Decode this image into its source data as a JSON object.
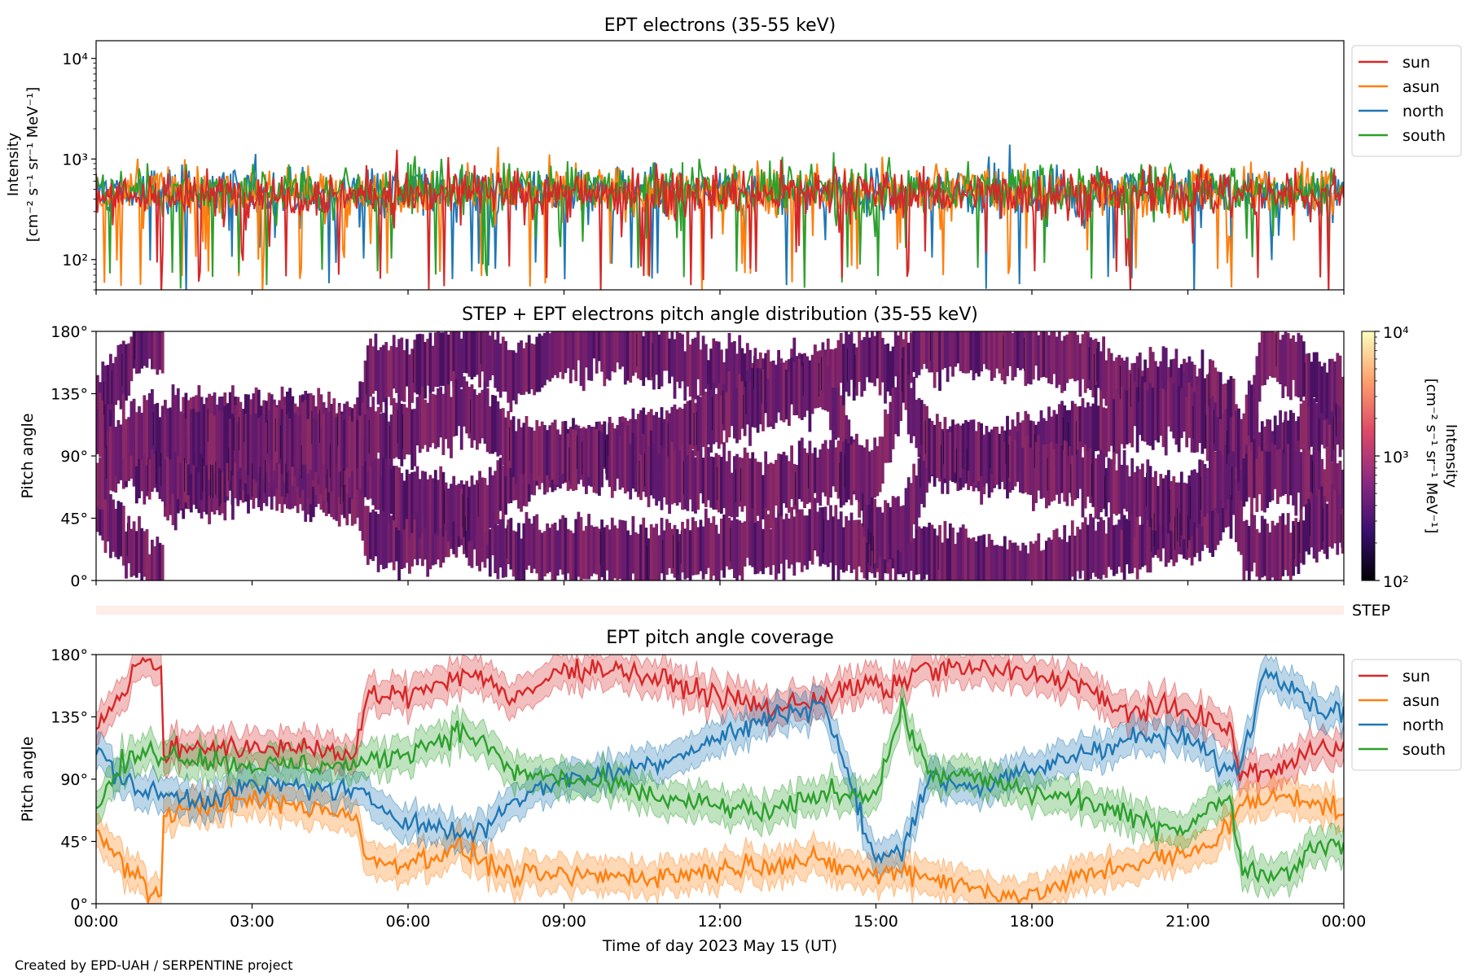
{
  "credit": "Created by EPD-UAH / SERPENTINE project",
  "colors": {
    "sun": "#d62728",
    "asun": "#ff7f0e",
    "north": "#1f77b4",
    "south": "#2ca02c",
    "step_bar": "#fdeee8"
  },
  "chart_data": [
    {
      "type": "line",
      "title": "EPT electrons (35-55 keV)",
      "ylabel_line1": "Intensity",
      "ylabel_line2": "[cm⁻² s⁻¹ sr⁻¹ MeV⁻¹]",
      "yscale": "log",
      "ylim": [
        50,
        15000
      ],
      "yticks": [
        {
          "value": 100,
          "label": "10²"
        },
        {
          "value": 1000,
          "label": "10³"
        },
        {
          "value": 10000,
          "label": "10⁴"
        }
      ],
      "xlim": [
        0,
        24
      ],
      "legend_position": "outside-right-top",
      "series": [
        {
          "name": "sun",
          "color": "#d62728",
          "typical": 450,
          "min_excursion": 50
        },
        {
          "name": "asun",
          "color": "#ff7f0e",
          "typical": 480,
          "min_excursion": 55
        },
        {
          "name": "north",
          "color": "#1f77b4",
          "typical": 470,
          "min_excursion": 50
        },
        {
          "name": "south",
          "color": "#2ca02c",
          "typical": 500,
          "min_excursion": 55
        }
      ]
    },
    {
      "type": "heatmap",
      "title": "STEP + EPT electrons pitch angle distribution (35-55 keV)",
      "ylabel": "Pitch angle",
      "ylim": [
        0,
        180
      ],
      "yticks": [
        "0°",
        "45°",
        "90°",
        "135°",
        "180°"
      ],
      "xlim": [
        0,
        24
      ],
      "colorbar": {
        "label_line1": "Intensity",
        "label_line2": "[cm⁻² s⁻¹ sr⁻¹ MeV⁻¹]",
        "scale": "log",
        "range": [
          100,
          10000
        ],
        "ticks": [
          "10²",
          "10³",
          "10⁴"
        ],
        "colormap": "inferno"
      }
    },
    {
      "type": "bar",
      "label": "STEP",
      "xlim": [
        0,
        24
      ]
    },
    {
      "type": "line",
      "title": "EPT pitch angle coverage",
      "ylabel": "Pitch angle",
      "xlabel": "Time of day 2023 May 15 (UT)",
      "ylim": [
        0,
        180
      ],
      "yticks": [
        "0°",
        "45°",
        "90°",
        "135°",
        "180°"
      ],
      "xlim": [
        0,
        24
      ],
      "xticks": [
        "00:00",
        "03:00",
        "06:00",
        "09:00",
        "12:00",
        "15:00",
        "18:00",
        "21:00",
        "00:00"
      ],
      "legend_position": "outside-right-top",
      "band_halfwidth_deg": 12,
      "series": [
        {
          "name": "sun",
          "color": "#d62728",
          "x": [
            0,
            0.5,
            0.8,
            1.25,
            1.3,
            2,
            3,
            4,
            5,
            5.2,
            6,
            6.5,
            7,
            7.5,
            8,
            9,
            10,
            11,
            12,
            13,
            14,
            15,
            15.2,
            15.8,
            16.5,
            17,
            18,
            19,
            19.5,
            20,
            21,
            21.8,
            22,
            22.5,
            23,
            23.5,
            24
          ],
          "y": [
            130,
            150,
            175,
            170,
            110,
            115,
            110,
            115,
            105,
            150,
            150,
            160,
            165,
            165,
            145,
            170,
            170,
            160,
            150,
            140,
            150,
            160,
            150,
            170,
            170,
            170,
            165,
            160,
            140,
            140,
            140,
            125,
            95,
            95,
            100,
            115,
            115
          ]
        },
        {
          "name": "asun",
          "color": "#ff7f0e",
          "x": [
            0,
            0.5,
            1,
            1.25,
            1.3,
            2,
            3,
            4,
            5,
            5.2,
            6,
            7,
            8,
            9,
            10,
            11,
            12,
            13,
            14,
            15,
            15.5,
            16,
            17,
            18,
            19,
            19.5,
            20,
            21,
            21.5,
            22,
            23,
            24
          ],
          "y": [
            50,
            30,
            10,
            5,
            65,
            70,
            75,
            70,
            65,
            30,
            30,
            40,
            20,
            20,
            20,
            20,
            25,
            30,
            30,
            20,
            25,
            20,
            10,
            5,
            20,
            25,
            30,
            35,
            45,
            70,
            80,
            65
          ]
        },
        {
          "name": "north",
          "color": "#1f77b4",
          "x": [
            0,
            0.5,
            1,
            2,
            3,
            4,
            5,
            6,
            7,
            7.5,
            8,
            9,
            10,
            11,
            12,
            13,
            14,
            15,
            15.5,
            16,
            17,
            18,
            19,
            20,
            21,
            21.8,
            22,
            22.5,
            23,
            23.5,
            24
          ],
          "y": [
            110,
            90,
            80,
            75,
            85,
            85,
            80,
            60,
            50,
            55,
            75,
            90,
            95,
            105,
            120,
            135,
            145,
            30,
            40,
            90,
            85,
            95,
            110,
            120,
            120,
            95,
            100,
            170,
            160,
            140,
            140
          ]
        },
        {
          "name": "south",
          "color": "#2ca02c",
          "x": [
            0,
            0.5,
            1,
            2,
            3,
            4,
            5,
            6,
            7,
            7.5,
            8,
            9,
            10,
            11,
            12,
            13,
            14,
            15,
            15.5,
            16,
            17,
            18,
            19,
            20,
            21,
            21.8,
            22,
            22.5,
            23,
            23.5,
            24
          ],
          "y": [
            70,
            100,
            110,
            105,
            100,
            100,
            100,
            110,
            125,
            115,
            95,
            90,
            85,
            75,
            70,
            65,
            80,
            80,
            140,
            95,
            90,
            80,
            75,
            60,
            55,
            80,
            30,
            20,
            25,
            45,
            40
          ]
        }
      ]
    }
  ]
}
